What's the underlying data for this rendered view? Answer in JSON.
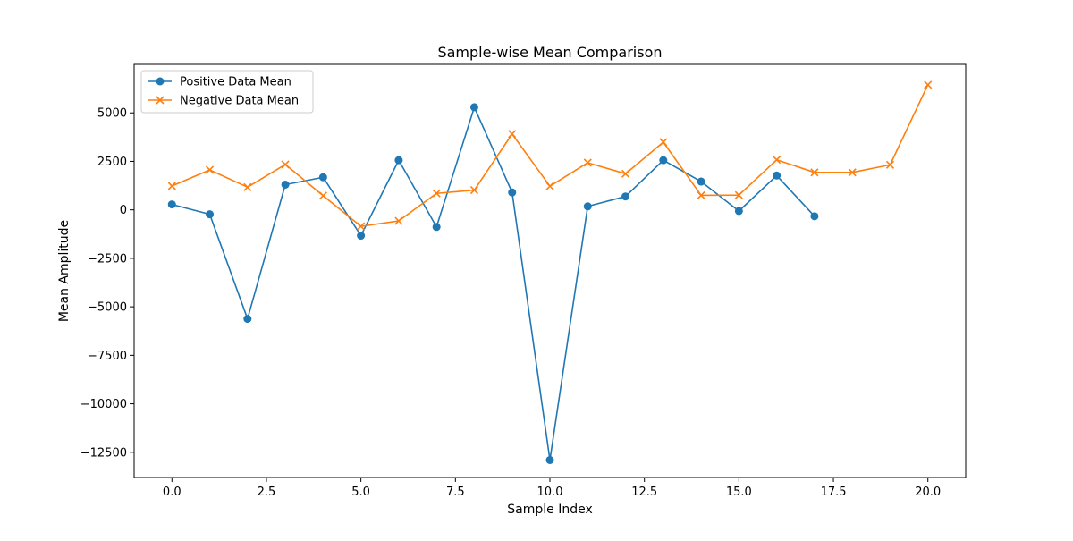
{
  "chart_data": {
    "type": "line",
    "title": "Sample-wise Mean Comparison",
    "xlabel": "Sample Index",
    "ylabel": "Mean Amplitude",
    "xlim": [
      -1.0,
      21.0
    ],
    "ylim": [
      -13800,
      7500
    ],
    "xticks": [
      0.0,
      2.5,
      5.0,
      7.5,
      10.0,
      12.5,
      15.0,
      17.5,
      20.0
    ],
    "xtick_labels": [
      "0.0",
      "2.5",
      "5.0",
      "7.5",
      "10.0",
      "12.5",
      "15.0",
      "17.5",
      "20.0"
    ],
    "yticks": [
      5000,
      2500,
      0,
      -2500,
      -5000,
      -7500,
      -10000,
      -12500
    ],
    "ytick_labels": [
      "5000",
      "2500",
      "0",
      "−2500",
      "−5000",
      "−7500",
      "−10000",
      "−12500"
    ],
    "grid": false,
    "legend_position": "top-left",
    "series": [
      {
        "name": "Positive Data Mean",
        "color": "#1f77b4",
        "marker": "circle",
        "x": [
          0,
          1,
          2,
          3,
          4,
          5,
          6,
          7,
          8,
          9,
          10,
          11,
          12,
          13,
          14,
          15,
          16,
          17
        ],
        "y": [
          280,
          -230,
          -5620,
          1300,
          1680,
          -1330,
          2560,
          -880,
          5290,
          900,
          -12900,
          180,
          690,
          2560,
          1460,
          -60,
          1770,
          -330
        ]
      },
      {
        "name": "Negative Data Mean",
        "color": "#ff7f0e",
        "marker": "x",
        "x": [
          0,
          1,
          2,
          3,
          4,
          5,
          6,
          7,
          8,
          9,
          10,
          11,
          12,
          13,
          14,
          15,
          16,
          17,
          18,
          19,
          20
        ],
        "y": [
          1230,
          2060,
          1170,
          2340,
          730,
          -850,
          -570,
          850,
          1020,
          3910,
          1220,
          2430,
          1860,
          3490,
          750,
          760,
          2580,
          1930,
          1930,
          2320,
          6450
        ]
      }
    ]
  }
}
